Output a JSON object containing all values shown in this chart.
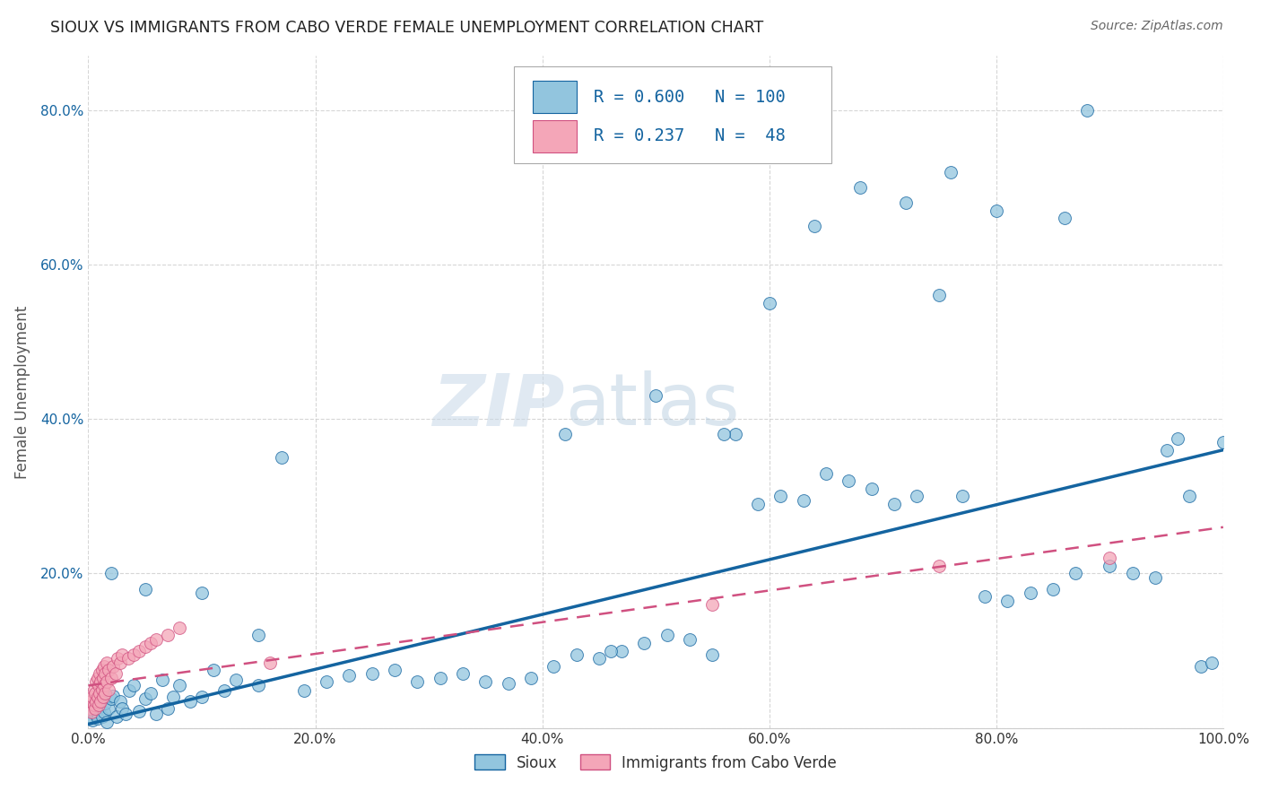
{
  "title": "SIOUX VS IMMIGRANTS FROM CABO VERDE FEMALE UNEMPLOYMENT CORRELATION CHART",
  "source": "Source: ZipAtlas.com",
  "ylabel": "Female Unemployment",
  "x_min": 0.0,
  "x_max": 1.0,
  "y_min": 0.0,
  "y_max": 0.87,
  "x_ticks": [
    0.0,
    0.2,
    0.4,
    0.6,
    0.8,
    1.0
  ],
  "x_tick_labels": [
    "0.0%",
    "20.0%",
    "40.0%",
    "60.0%",
    "80.0%",
    "100.0%"
  ],
  "y_ticks": [
    0.0,
    0.2,
    0.4,
    0.6,
    0.8
  ],
  "y_tick_labels": [
    "",
    "20.0%",
    "40.0%",
    "60.0%",
    "80.0%"
  ],
  "legend_labels": [
    "Sioux",
    "Immigrants from Cabo Verde"
  ],
  "legend_R1": "0.600",
  "legend_N1": "100",
  "legend_R2": "0.237",
  "legend_N2": "48",
  "sioux_color": "#92c5de",
  "cabo_verde_color": "#f4a6b8",
  "sioux_line_color": "#1464a0",
  "cabo_verde_line_color": "#d05080",
  "background_color": "#ffffff",
  "sioux_x": [
    0.001,
    0.002,
    0.003,
    0.004,
    0.005,
    0.006,
    0.007,
    0.008,
    0.009,
    0.01,
    0.011,
    0.012,
    0.013,
    0.014,
    0.015,
    0.016,
    0.018,
    0.02,
    0.022,
    0.025,
    0.028,
    0.03,
    0.033,
    0.036,
    0.04,
    0.045,
    0.05,
    0.055,
    0.06,
    0.065,
    0.07,
    0.075,
    0.08,
    0.09,
    0.1,
    0.11,
    0.12,
    0.13,
    0.15,
    0.17,
    0.19,
    0.21,
    0.23,
    0.25,
    0.27,
    0.29,
    0.31,
    0.33,
    0.35,
    0.37,
    0.39,
    0.41,
    0.43,
    0.45,
    0.47,
    0.49,
    0.51,
    0.53,
    0.55,
    0.57,
    0.59,
    0.61,
    0.63,
    0.65,
    0.67,
    0.69,
    0.71,
    0.73,
    0.75,
    0.77,
    0.79,
    0.81,
    0.83,
    0.85,
    0.87,
    0.88,
    0.9,
    0.92,
    0.94,
    0.96,
    0.97,
    0.98,
    0.99,
    1.0,
    0.02,
    0.05,
    0.1,
    0.15,
    0.42,
    0.46,
    0.5,
    0.56,
    0.6,
    0.64,
    0.68,
    0.72,
    0.76,
    0.8,
    0.86,
    0.95
  ],
  "sioux_y": [
    0.02,
    0.015,
    0.025,
    0.01,
    0.03,
    0.018,
    0.022,
    0.012,
    0.035,
    0.028,
    0.04,
    0.015,
    0.045,
    0.02,
    0.032,
    0.008,
    0.025,
    0.038,
    0.042,
    0.015,
    0.035,
    0.025,
    0.018,
    0.048,
    0.055,
    0.022,
    0.038,
    0.045,
    0.018,
    0.062,
    0.025,
    0.04,
    0.055,
    0.035,
    0.04,
    0.075,
    0.048,
    0.062,
    0.055,
    0.35,
    0.048,
    0.06,
    0.068,
    0.07,
    0.075,
    0.06,
    0.065,
    0.07,
    0.06,
    0.058,
    0.065,
    0.08,
    0.095,
    0.09,
    0.1,
    0.11,
    0.12,
    0.115,
    0.095,
    0.38,
    0.29,
    0.3,
    0.295,
    0.33,
    0.32,
    0.31,
    0.29,
    0.3,
    0.56,
    0.3,
    0.17,
    0.165,
    0.175,
    0.18,
    0.2,
    0.8,
    0.21,
    0.2,
    0.195,
    0.375,
    0.3,
    0.08,
    0.085,
    0.37,
    0.2,
    0.18,
    0.175,
    0.12,
    0.38,
    0.1,
    0.43,
    0.38,
    0.55,
    0.65,
    0.7,
    0.68,
    0.72,
    0.67,
    0.66,
    0.36
  ],
  "cabo_x": [
    0.001,
    0.002,
    0.003,
    0.004,
    0.005,
    0.005,
    0.006,
    0.006,
    0.007,
    0.007,
    0.008,
    0.008,
    0.009,
    0.009,
    0.01,
    0.01,
    0.011,
    0.011,
    0.012,
    0.012,
    0.013,
    0.013,
    0.014,
    0.014,
    0.015,
    0.015,
    0.016,
    0.016,
    0.018,
    0.018,
    0.02,
    0.022,
    0.024,
    0.026,
    0.028,
    0.03,
    0.035,
    0.04,
    0.045,
    0.05,
    0.055,
    0.06,
    0.07,
    0.08,
    0.16,
    0.55,
    0.75,
    0.9
  ],
  "cabo_y": [
    0.025,
    0.035,
    0.02,
    0.04,
    0.03,
    0.05,
    0.025,
    0.045,
    0.035,
    0.06,
    0.04,
    0.065,
    0.03,
    0.055,
    0.045,
    0.07,
    0.035,
    0.06,
    0.05,
    0.075,
    0.04,
    0.065,
    0.055,
    0.08,
    0.045,
    0.07,
    0.06,
    0.085,
    0.05,
    0.075,
    0.065,
    0.08,
    0.07,
    0.09,
    0.085,
    0.095,
    0.09,
    0.095,
    0.1,
    0.105,
    0.11,
    0.115,
    0.12,
    0.13,
    0.085,
    0.16,
    0.21,
    0.22
  ],
  "sioux_trend": [
    0.0,
    1.0,
    0.005,
    0.36
  ],
  "cabo_trend": [
    0.0,
    1.0,
    0.055,
    0.26
  ]
}
